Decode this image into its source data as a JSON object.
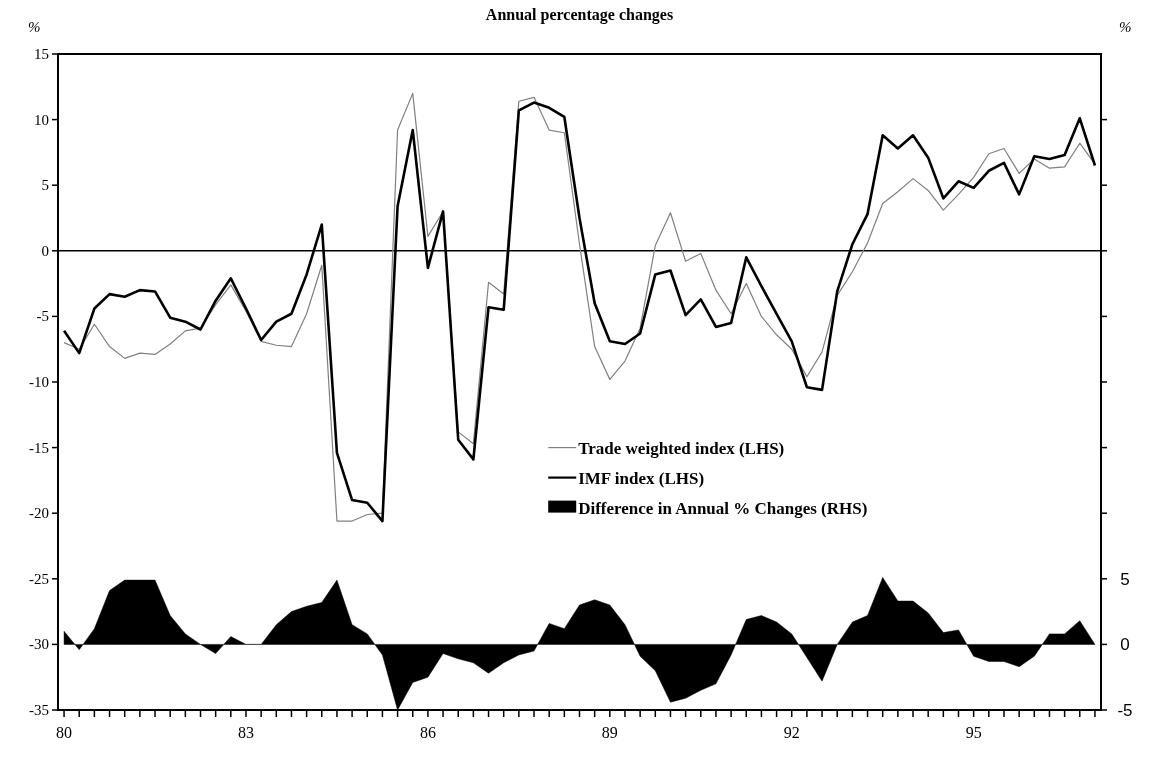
{
  "chart_data": {
    "type": "line",
    "title": "Annual percentage changes",
    "ylabel": "%",
    "y2label": "%",
    "x": [
      80,
      80.25,
      80.5,
      80.75,
      81,
      81.25,
      81.5,
      81.75,
      82,
      82.25,
      82.5,
      82.75,
      83,
      83.25,
      83.5,
      83.75,
      84,
      84.25,
      84.5,
      84.75,
      85,
      85.25,
      85.5,
      85.75,
      86,
      86.25,
      86.5,
      86.75,
      87,
      87.25,
      87.5,
      87.75,
      88,
      88.25,
      88.5,
      88.75,
      89,
      89.25,
      89.5,
      89.75,
      90,
      90.25,
      90.5,
      90.75,
      91,
      91.25,
      91.5,
      91.75,
      92,
      92.25,
      92.5,
      92.75,
      93,
      93.25,
      93.5,
      93.75,
      94,
      94.25,
      94.5,
      94.75,
      95,
      95.25,
      95.5,
      95.75,
      96,
      96.25,
      96.5,
      96.75,
      97
    ],
    "series": [
      {
        "name": "Trade weighted index (LHS)",
        "color": "#808080",
        "values": [
          -7.0,
          -7.5,
          -5.6,
          -7.3,
          -8.2,
          -7.8,
          -7.9,
          -7.1,
          -6.1,
          -5.9,
          -4.1,
          -2.6,
          -4.6,
          -6.9,
          -7.2,
          -7.3,
          -4.8,
          -1.1,
          -20.6,
          -20.6,
          -20.1,
          -20.0,
          9.2,
          12.0,
          1.1,
          3.0,
          -13.8,
          -14.7,
          -2.4,
          -3.3,
          11.4,
          11.7,
          9.2,
          9.0,
          0.5,
          -7.3,
          -9.8,
          -8.4,
          -5.9,
          0.4,
          2.9,
          -0.8,
          -0.2,
          -3.0,
          -4.8,
          -2.5,
          -5.0,
          -6.4,
          -7.5,
          -9.6,
          -7.7,
          -3.4,
          -1.6,
          0.6,
          3.6,
          4.5,
          5.5,
          4.6,
          3.1,
          4.3,
          5.6,
          7.4,
          7.8,
          5.9,
          7.0,
          6.3,
          6.4,
          8.2,
          6.6
        ]
      },
      {
        "name": "IMF index (LHS)",
        "color": "#000000",
        "values": [
          -6.1,
          -7.8,
          -4.4,
          -3.3,
          -3.5,
          -3.0,
          -3.1,
          -5.1,
          -5.4,
          -6.0,
          -3.8,
          -2.1,
          -4.4,
          -6.8,
          -5.4,
          -4.8,
          -1.8,
          2.0,
          -15.4,
          -19.0,
          -19.2,
          -20.6,
          3.4,
          9.2,
          -1.3,
          3.0,
          -14.4,
          -15.9,
          -4.3,
          -4.5,
          10.7,
          11.3,
          10.9,
          10.2,
          2.5,
          -4.0,
          -6.9,
          -7.1,
          -6.3,
          -1.8,
          -1.5,
          -4.9,
          -3.7,
          -5.8,
          -5.5,
          -0.5,
          -2.7,
          -4.8,
          -6.9,
          -10.4,
          -10.6,
          -3.1,
          0.5,
          2.8,
          8.8,
          7.8,
          8.8,
          7.1,
          4.0,
          5.3,
          4.8,
          6.1,
          6.7,
          4.3,
          7.2,
          7.0,
          7.3,
          10.1,
          6.5
        ]
      },
      {
        "name": "Difference in Annual % Changes (RHS)",
        "type": "area",
        "axis": "y2",
        "color": "#000000",
        "values": [
          1.0,
          -0.4,
          1.2,
          4.1,
          4.9,
          4.9,
          4.9,
          2.2,
          0.8,
          0,
          -0.7,
          0.6,
          0,
          0,
          1.5,
          2.5,
          2.9,
          3.2,
          4.9,
          1.5,
          0.8,
          -0.8,
          -5.0,
          -2.9,
          -2.5,
          -0.7,
          -1.1,
          -1.4,
          -2.2,
          -1.4,
          -0.8,
          -0.5,
          1.6,
          1.2,
          3.0,
          3.4,
          3.0,
          1.5,
          -0.9,
          -2.0,
          -4.4,
          -4.1,
          -3.5,
          -3.0,
          -0.8,
          1.9,
          2.2,
          1.7,
          0.8,
          -1.0,
          -2.8,
          0,
          1.7,
          2.2,
          5.1,
          3.3,
          3.3,
          2.4,
          0.9,
          1.1,
          -0.9,
          -1.3,
          -1.3,
          -1.7,
          -0.9,
          0.8,
          0.8,
          1.8,
          0
        ]
      }
    ],
    "xlim": [
      79.9,
      97.1
    ],
    "xticks": [
      80,
      {
        "value": 80.25,
        "label": null
      },
      {
        "value": 80.5,
        "label": null
      },
      {
        "value": 80.75,
        "label": null
      },
      {
        "value": 81,
        "label": null
      },
      {
        "value": 81.25,
        "label": null
      },
      {
        "value": 81.5,
        "label": null
      },
      {
        "value": 81.75,
        "label": null
      },
      {
        "value": 82,
        "label": null
      },
      {
        "value": 82.25,
        "label": null
      },
      {
        "value": 82.5,
        "label": null
      },
      {
        "value": 82.75,
        "label": null
      },
      83,
      {
        "value": 83.25,
        "label": null
      },
      {
        "value": 83.5,
        "label": null
      },
      {
        "value": 83.75,
        "label": null
      },
      {
        "value": 84,
        "label": null
      },
      {
        "value": 84.25,
        "label": null
      },
      {
        "value": 84.5,
        "label": null
      },
      {
        "value": 84.75,
        "label": null
      },
      {
        "value": 85,
        "label": null
      },
      {
        "value": 85.25,
        "label": null
      },
      {
        "value": 85.5,
        "label": null
      },
      {
        "value": 85.75,
        "label": null
      },
      86,
      {
        "value": 86.25,
        "label": null
      },
      {
        "value": 86.5,
        "label": null
      },
      {
        "value": 86.75,
        "label": null
      },
      {
        "value": 87,
        "label": null
      },
      {
        "value": 87.25,
        "label": null
      },
      {
        "value": 87.5,
        "label": null
      },
      {
        "value": 87.75,
        "label": null
      },
      {
        "value": 88,
        "label": null
      },
      {
        "value": 88.25,
        "label": null
      },
      {
        "value": 88.5,
        "label": null
      },
      {
        "value": 88.75,
        "label": null
      },
      89,
      {
        "value": 89.25,
        "label": null
      },
      {
        "value": 89.5,
        "label": null
      },
      {
        "value": 89.75,
        "label": null
      },
      {
        "value": 90,
        "label": null
      },
      {
        "value": 90.25,
        "label": null
      },
      {
        "value": 90.5,
        "label": null
      },
      {
        "value": 90.75,
        "label": null
      },
      {
        "value": 91,
        "label": null
      },
      {
        "value": 91.25,
        "label": null
      },
      {
        "value": 91.5,
        "label": null
      },
      {
        "value": 91.75,
        "label": null
      },
      92,
      {
        "value": 92.25,
        "label": null
      },
      {
        "value": 92.5,
        "label": null
      },
      {
        "value": 92.75,
        "label": null
      },
      {
        "value": 93,
        "label": null
      },
      {
        "value": 93.25,
        "label": null
      },
      {
        "value": 93.5,
        "label": null
      },
      {
        "value": 93.75,
        "label": null
      },
      {
        "value": 94,
        "label": null
      },
      {
        "value": 94.25,
        "label": null
      },
      {
        "value": 94.5,
        "label": null
      },
      {
        "value": 94.75,
        "label": null
      },
      95,
      {
        "value": 95.25,
        "label": null
      },
      {
        "value": 95.5,
        "label": null
      },
      {
        "value": 95.75,
        "label": null
      },
      {
        "value": 96,
        "label": null
      },
      {
        "value": 96.25,
        "label": null
      },
      {
        "value": 96.5,
        "label": null
      },
      {
        "value": 96.75,
        "label": null
      },
      {
        "value": 97,
        "label": null
      }
    ],
    "ylim": [
      -35,
      15
    ],
    "yticks": [
      -35,
      -30,
      -25,
      -20,
      -15,
      -10,
      -5,
      0,
      5,
      10,
      15
    ],
    "y2lim": [
      -5,
      45
    ],
    "y2ticks": [
      -5,
      0,
      5,
      {
        "value": 10,
        "label": null
      },
      {
        "value": 15,
        "label": null
      },
      {
        "value": 20,
        "label": null
      },
      {
        "value": 25,
        "label": null
      },
      {
        "value": 30,
        "label": null
      },
      {
        "value": 35,
        "label": null
      },
      {
        "value": 40,
        "label": null
      }
    ],
    "ref_lines": [
      {
        "axis": "y",
        "value": 0,
        "color": "#000000"
      }
    ],
    "legend": "center",
    "grid": false,
    "marker": "none",
    "line_style": "solid"
  }
}
